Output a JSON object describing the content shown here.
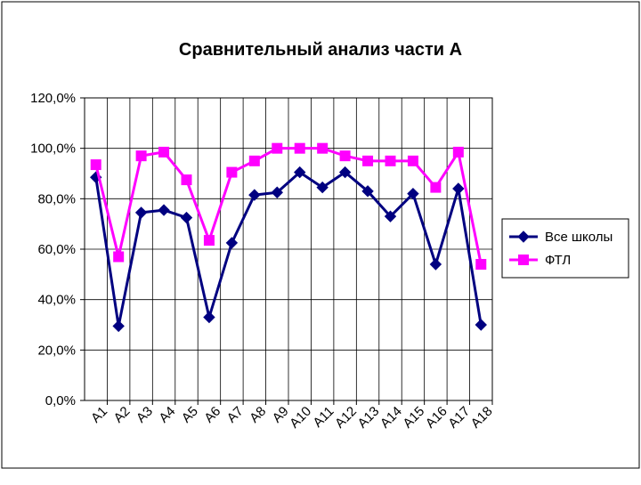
{
  "chart_data": {
    "type": "line",
    "title": "Сравнительный анализ части А",
    "xlabel": "",
    "ylabel": "",
    "categories": [
      "A1",
      "A2",
      "A3",
      "A4",
      "A5",
      "A6",
      "A7",
      "A8",
      "A9",
      "A10",
      "A11",
      "A12",
      "A13",
      "A14",
      "A15",
      "A16",
      "A17",
      "A18"
    ],
    "y_ticks": [
      "0,0%",
      "20,0%",
      "40,0%",
      "60,0%",
      "80,0%",
      "100,0%",
      "120,0%"
    ],
    "ylim": [
      0,
      120
    ],
    "grid": true,
    "legend_position": "right",
    "series": [
      {
        "name": "Все школы",
        "color": "#000080",
        "marker": "diamond",
        "values": [
          88.5,
          29.5,
          74.5,
          75.5,
          72.5,
          33,
          62.5,
          81.5,
          82.5,
          90.5,
          84.5,
          90.5,
          83,
          73,
          82,
          54,
          84,
          30
        ]
      },
      {
        "name": "ФТЛ",
        "color": "#ff00ff",
        "marker": "square",
        "values": [
          93.5,
          57,
          97,
          98.5,
          87.5,
          63.5,
          90.5,
          95,
          100,
          100,
          100,
          97,
          95,
          95,
          95,
          84.5,
          98.5,
          54
        ]
      }
    ]
  }
}
